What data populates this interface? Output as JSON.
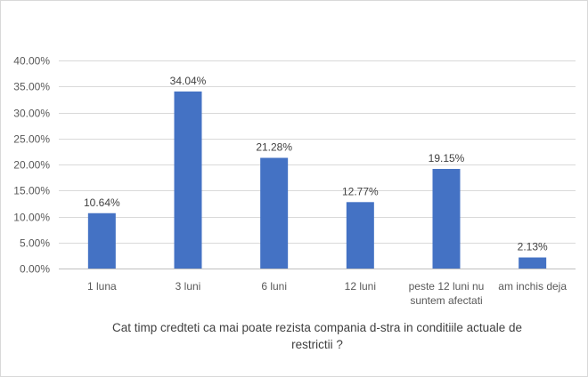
{
  "chart_data": {
    "type": "bar",
    "categories": [
      [
        "1 luna"
      ],
      [
        "3 luni"
      ],
      [
        "6 luni"
      ],
      [
        "12 luni"
      ],
      [
        "peste 12 luni nu",
        "suntem afectati"
      ],
      [
        "am inchis deja"
      ]
    ],
    "values": [
      10.64,
      34.04,
      21.28,
      12.77,
      19.15,
      2.13
    ],
    "value_labels": [
      "10.64%",
      "34.04%",
      "21.28%",
      "12.77%",
      "19.15%",
      "2.13%"
    ],
    "title": "",
    "xlabel": [
      "Cat timp credteti ca mai poate rezista compania d-stra in conditiile actuale de",
      "restrictii ?"
    ],
    "ylabel": "",
    "ylim": [
      0,
      40
    ],
    "yticks": [
      0,
      5,
      10,
      15,
      20,
      25,
      30,
      35,
      40
    ],
    "ytick_labels": [
      "0.00%",
      "5.00%",
      "10.00%",
      "15.00%",
      "20.00%",
      "25.00%",
      "30.00%",
      "35.00%",
      "40.00%"
    ],
    "grid": "horizontal",
    "legend": "none",
    "colors": {
      "bar": "#4472c4",
      "grid": "#d9d9d9",
      "axis": "#bfbfbf"
    }
  }
}
